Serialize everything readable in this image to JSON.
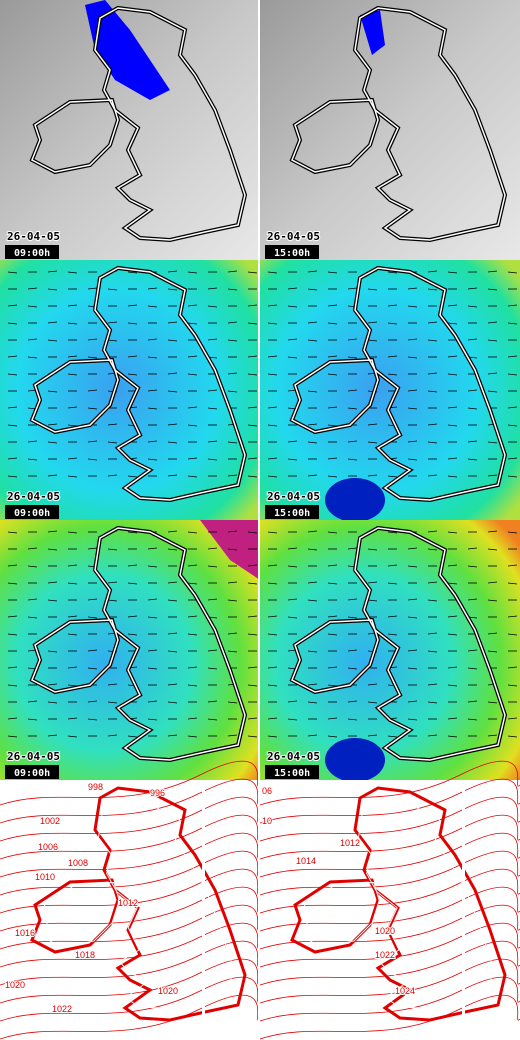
{
  "panels": [
    {
      "date": "26-04-05",
      "time": "09:00h"
    },
    {
      "date": "26-04-05",
      "time": "15:00h"
    },
    {
      "date": "26-04-05",
      "time": "09:00h"
    },
    {
      "date": "26-04-05",
      "time": "15:00h"
    },
    {
      "date": "26-04-05",
      "time": "09:00h"
    },
    {
      "date": "26-04-05",
      "time": "15:00h"
    }
  ],
  "isobars": {
    "left": [
      "998",
      "996",
      "1002",
      "1006",
      "1008",
      "1010",
      "1012",
      "1016",
      "1018",
      "1020",
      "1020",
      "1022"
    ],
    "right": [
      "06",
      "10",
      "1012",
      "1014",
      "1020",
      "1022",
      "1024"
    ]
  }
}
